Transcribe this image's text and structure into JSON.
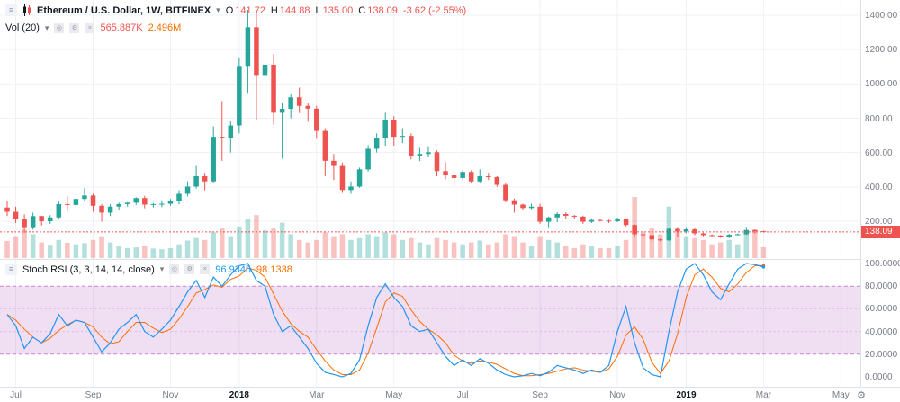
{
  "header": {
    "symbol_title": "Ethereum / U.S. Dollar, 1W, BITFINEX",
    "ohlc": {
      "o_label": "O",
      "o_value": "141.72",
      "h_label": "H",
      "h_value": "144.88",
      "l_label": "L",
      "l_value": "135.00",
      "c_label": "C",
      "c_value": "138.09",
      "change": "-3.62 (-2.55%)"
    }
  },
  "volume_legend": {
    "label": "Vol (20)",
    "value_volume": "565.887K",
    "value_ma": "2.496M"
  },
  "stoch_legend": {
    "label": "Stoch RSI (3, 3, 14, 14, close)",
    "k_value": "96.9345",
    "d_value": "98.1338"
  },
  "icons": {
    "menu": "≡",
    "caret": "▾",
    "eye": "◎",
    "gear": "⚙",
    "close": "×"
  },
  "axes": {
    "price_labels": [
      "1400.00",
      "1200.00",
      "1000.00",
      "800.00",
      "600.00",
      "400.00",
      "200.00"
    ],
    "last_price": "138.09",
    "stoch_labels": [
      "100.0000",
      "80.0000",
      "60.0000",
      "40.0000",
      "20.0000",
      "0.0000"
    ]
  },
  "colors": {
    "up": "#26a69a",
    "down": "#ef5350",
    "vol_up": "rgba(38,166,154,0.35)",
    "vol_down": "rgba(239,83,80,0.35)",
    "grid": "#eef1f6",
    "band_fill": "rgba(171,71,188,0.18)",
    "band_line": "#ab47bc",
    "stoch_k": "#2196f3",
    "stoch_d": "#ff6d00",
    "last_line": "#ef5350",
    "separator": "#dde1e8"
  },
  "chart_data": {
    "type": "candlestick",
    "title": "Ethereum / U.S. Dollar, 1W, BITFINEX",
    "interval": "1W",
    "price_ylim": [
      0,
      1490
    ],
    "stoch_ylim": [
      0,
      100
    ],
    "band": [
      20,
      80
    ],
    "last_close": 138.09,
    "time_ticks": [
      {
        "label": "Jul",
        "week": 1
      },
      {
        "label": "Sep",
        "week": 10
      },
      {
        "label": "Nov",
        "week": 19
      },
      {
        "label": "2018",
        "week": 27,
        "major": true
      },
      {
        "label": "Mar",
        "week": 36
      },
      {
        "label": "May",
        "week": 45
      },
      {
        "label": "Jul",
        "week": 53
      },
      {
        "label": "Sep",
        "week": 62
      },
      {
        "label": "Nov",
        "week": 71
      },
      {
        "label": "2019",
        "week": 79,
        "major": true
      },
      {
        "label": "Mar",
        "week": 88
      },
      {
        "label": "May",
        "week": 97
      }
    ],
    "candles": [
      [
        280,
        320,
        230,
        255
      ],
      [
        255,
        285,
        190,
        215
      ],
      [
        215,
        240,
        133,
        165
      ],
      [
        165,
        250,
        150,
        230
      ],
      [
        230,
        232,
        175,
        200
      ],
      [
        200,
        235,
        185,
        222
      ],
      [
        222,
        320,
        210,
        300
      ],
      [
        300,
        345,
        260,
        295
      ],
      [
        295,
        340,
        285,
        330
      ],
      [
        330,
        395,
        318,
        350
      ],
      [
        350,
        360,
        255,
        290
      ],
      [
        290,
        300,
        197,
        250
      ],
      [
        250,
        300,
        230,
        285
      ],
      [
        285,
        308,
        268,
        300
      ],
      [
        300,
        312,
        285,
        308
      ],
      [
        308,
        340,
        295,
        335
      ],
      [
        335,
        348,
        275,
        297
      ],
      [
        297,
        307,
        280,
        300
      ],
      [
        300,
        322,
        282,
        302
      ],
      [
        302,
        330,
        290,
        316
      ],
      [
        316,
        380,
        298,
        360
      ],
      [
        360,
        432,
        345,
        402
      ],
      [
        402,
        522,
        390,
        462
      ],
      [
        462,
        482,
        380,
        432
      ],
      [
        432,
        752,
        425,
        692
      ],
      [
        692,
        900,
        552,
        682
      ],
      [
        682,
        782,
        600,
        758
      ],
      [
        758,
        1155,
        712,
        1105
      ],
      [
        1105,
        1432,
        948,
        1330
      ],
      [
        1330,
        1410,
        792,
        1052
      ],
      [
        1052,
        1182,
        900,
        1112
      ],
      [
        1112,
        1172,
        762,
        832
      ],
      [
        832,
        892,
        565,
        855
      ],
      [
        855,
        945,
        800,
        922
      ],
      [
        922,
        978,
        830,
        872
      ],
      [
        872,
        892,
        780,
        856
      ],
      [
        856,
        872,
        680,
        726
      ],
      [
        726,
        742,
        462,
        552
      ],
      [
        552,
        592,
        440,
        522
      ],
      [
        522,
        542,
        365,
        382
      ],
      [
        382,
        432,
        360,
        402
      ],
      [
        402,
        512,
        395,
        502
      ],
      [
        502,
        642,
        490,
        622
      ],
      [
        622,
        712,
        600,
        682
      ],
      [
        682,
        832,
        640,
        792
      ],
      [
        792,
        812,
        640,
        692
      ],
      [
        692,
        742,
        655,
        697
      ],
      [
        697,
        712,
        560,
        582
      ],
      [
        582,
        627,
        550,
        592
      ],
      [
        592,
        637,
        572,
        602
      ],
      [
        602,
        612,
        462,
        492
      ],
      [
        492,
        542,
        445,
        467
      ],
      [
        467,
        482,
        405,
        452
      ],
      [
        452,
        497,
        440,
        487
      ],
      [
        487,
        497,
        420,
        432
      ],
      [
        432,
        502,
        425,
        462
      ],
      [
        462,
        482,
        440,
        457
      ],
      [
        457,
        462,
        400,
        412
      ],
      [
        412,
        422,
        310,
        322
      ],
      [
        322,
        332,
        250,
        297
      ],
      [
        297,
        302,
        265,
        277
      ],
      [
        277,
        302,
        270,
        285
      ],
      [
        285,
        302,
        185,
        197
      ],
      [
        197,
        227,
        165,
        222
      ],
      [
        222,
        252,
        195,
        242
      ],
      [
        242,
        252,
        215,
        232
      ],
      [
        232,
        237,
        215,
        227
      ],
      [
        227,
        232,
        185,
        197
      ],
      [
        197,
        217,
        190,
        207
      ],
      [
        207,
        212,
        198,
        204
      ],
      [
        204,
        209,
        190,
        200
      ],
      [
        200,
        222,
        195,
        213
      ],
      [
        213,
        217,
        170,
        178
      ],
      [
        178,
        182,
        110,
        124
      ],
      [
        124,
        129,
        102,
        119
      ],
      [
        119,
        122,
        82,
        94
      ],
      [
        94,
        100,
        83,
        89
      ],
      [
        89,
        161,
        85,
        156
      ],
      [
        156,
        166,
        110,
        141
      ],
      [
        141,
        166,
        130,
        153
      ],
      [
        153,
        159,
        118,
        129
      ],
      [
        129,
        134,
        113,
        119
      ],
      [
        119,
        123,
        112,
        117
      ],
      [
        117,
        119,
        103,
        108
      ],
      [
        108,
        127,
        102,
        121
      ],
      [
        121,
        129,
        117,
        124
      ],
      [
        124,
        167,
        120,
        149
      ],
      [
        149,
        153,
        128,
        141.7
      ],
      [
        141.72,
        144.88,
        135,
        138.09
      ]
    ],
    "volumes_k": [
      900,
      1150,
      1500,
      1250,
      820,
      700,
      950,
      800,
      720,
      780,
      950,
      1150,
      820,
      620,
      520,
      560,
      620,
      500,
      460,
      520,
      720,
      920,
      1050,
      950,
      1350,
      1550,
      1150,
      1650,
      2050,
      2250,
      1450,
      1550,
      1850,
      1250,
      950,
      820,
      950,
      1350,
      1150,
      1250,
      950,
      1050,
      1250,
      1150,
      1350,
      1250,
      950,
      1050,
      820,
      720,
      1050,
      950,
      820,
      720,
      820,
      920,
      720,
      820,
      1250,
      1150,
      820,
      620,
      1150,
      950,
      820,
      620,
      520,
      720,
      620,
      520,
      520,
      620,
      950,
      3200,
      1350,
      1550,
      1250,
      2700,
      1450,
      1150,
      1050,
      950,
      720,
      820,
      950,
      720,
      1350,
      1450,
      566
    ],
    "stoch_k": [
      55,
      45,
      25,
      35,
      30,
      38,
      55,
      45,
      50,
      48,
      35,
      22,
      30,
      42,
      48,
      55,
      40,
      35,
      42,
      50,
      62,
      75,
      85,
      70,
      88,
      80,
      90,
      98,
      100,
      85,
      80,
      55,
      40,
      45,
      35,
      25,
      12,
      4,
      2,
      0,
      3,
      15,
      45,
      70,
      82,
      70,
      62,
      45,
      40,
      42,
      30,
      18,
      10,
      15,
      10,
      16,
      12,
      6,
      2,
      0,
      1,
      3,
      1,
      4,
      10,
      8,
      6,
      3,
      6,
      4,
      10,
      40,
      62,
      30,
      8,
      2,
      0,
      40,
      75,
      95,
      100,
      90,
      75,
      68,
      82,
      95,
      100,
      99,
      96.93
    ],
    "stoch_d": [
      55,
      50,
      42,
      35,
      30,
      34,
      41,
      46,
      50,
      48,
      44,
      35,
      29,
      31,
      40,
      48,
      48,
      43,
      39,
      42,
      51,
      62,
      74,
      77,
      81,
      79,
      86,
      89,
      96,
      94,
      88,
      73,
      58,
      47,
      40,
      35,
      24,
      14,
      6,
      2,
      2,
      6,
      21,
      43,
      66,
      74,
      71,
      59,
      49,
      42,
      37,
      30,
      19,
      14,
      12,
      14,
      13,
      11,
      7,
      3,
      1,
      1,
      2,
      3,
      5,
      7,
      8,
      6,
      5,
      4,
      7,
      18,
      37,
      44,
      33,
      13,
      3,
      14,
      38,
      70,
      90,
      95,
      88,
      78,
      75,
      82,
      92,
      98,
      98.13
    ]
  }
}
